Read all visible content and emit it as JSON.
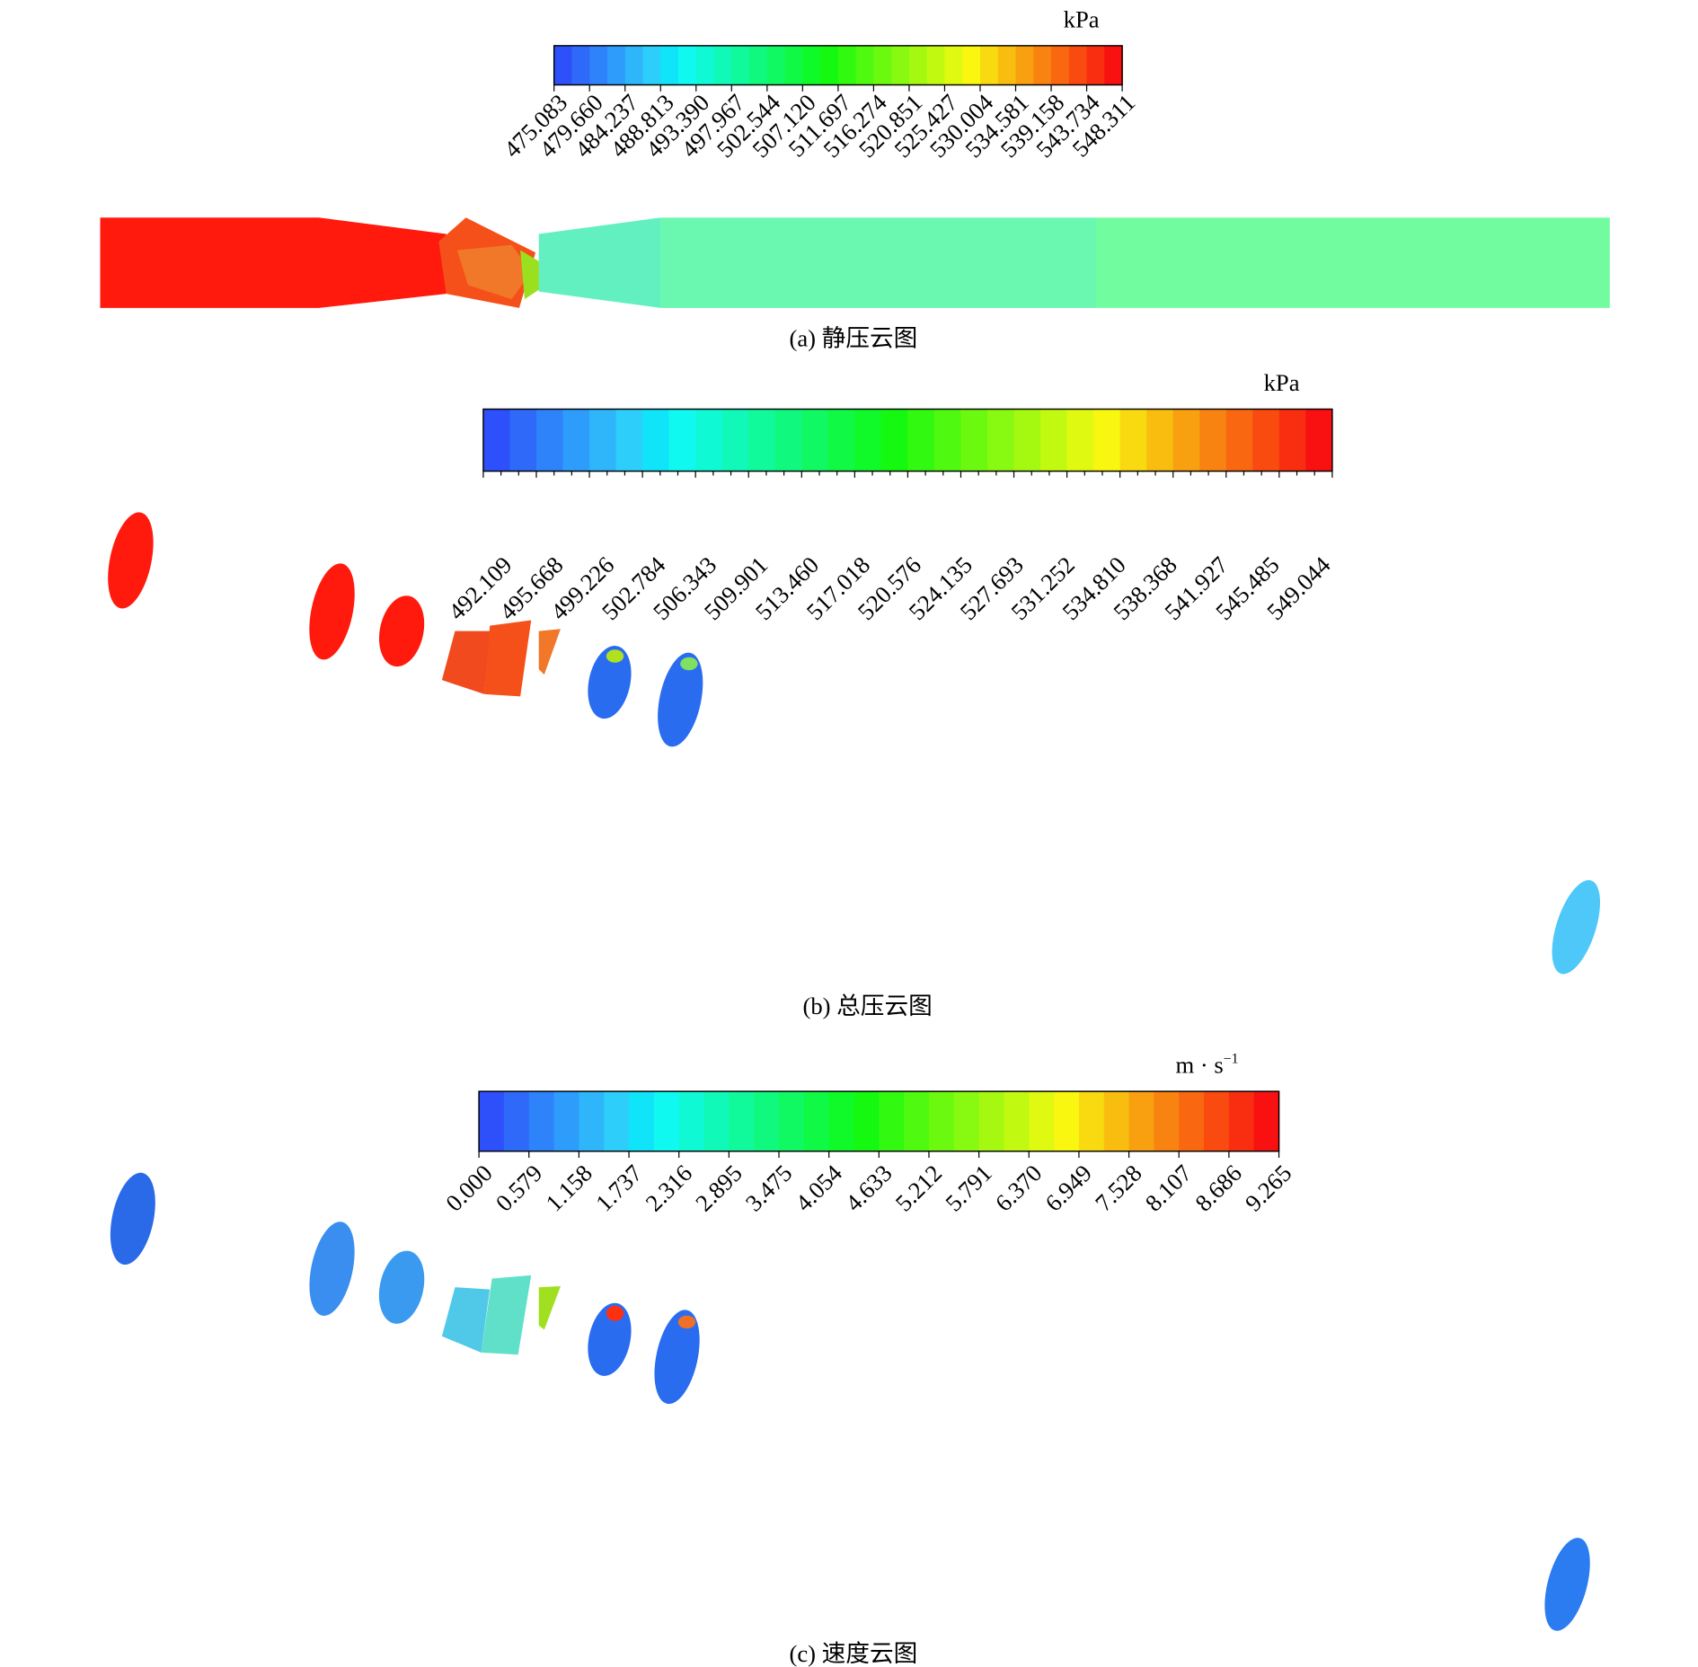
{
  "panels": [
    {
      "unit": "kPa",
      "ticks": [
        "475.083",
        "479.660",
        "484.237",
        "488.813",
        "493.390",
        "497.967",
        "502.544",
        "507.120",
        "511.697",
        "516.274",
        "520.851",
        "525.427",
        "530.004",
        "534.581",
        "539.158",
        "543.734",
        "548.311"
      ],
      "caption": "(a) 静压云图"
    },
    {
      "unit": "kPa",
      "ticks": [
        "492.109",
        "495.668",
        "499.226",
        "502.784",
        "506.343",
        "509.901",
        "513.460",
        "517.018",
        "520.576",
        "524.135",
        "527.693",
        "531.252",
        "534.810",
        "538.368",
        "541.927",
        "545.485",
        "549.044"
      ],
      "caption": "(b) 总压云图"
    },
    {
      "unit": "m · s",
      "unit_sup": "−1",
      "ticks": [
        "0.000",
        "0.579",
        "1.158",
        "1.737",
        "2.316",
        "2.895",
        "3.475",
        "4.054",
        "4.633",
        "5.212",
        "5.791",
        "6.370",
        "6.949",
        "7.528",
        "8.107",
        "8.686",
        "9.265"
      ],
      "caption": "(c) 速度云图"
    }
  ]
}
